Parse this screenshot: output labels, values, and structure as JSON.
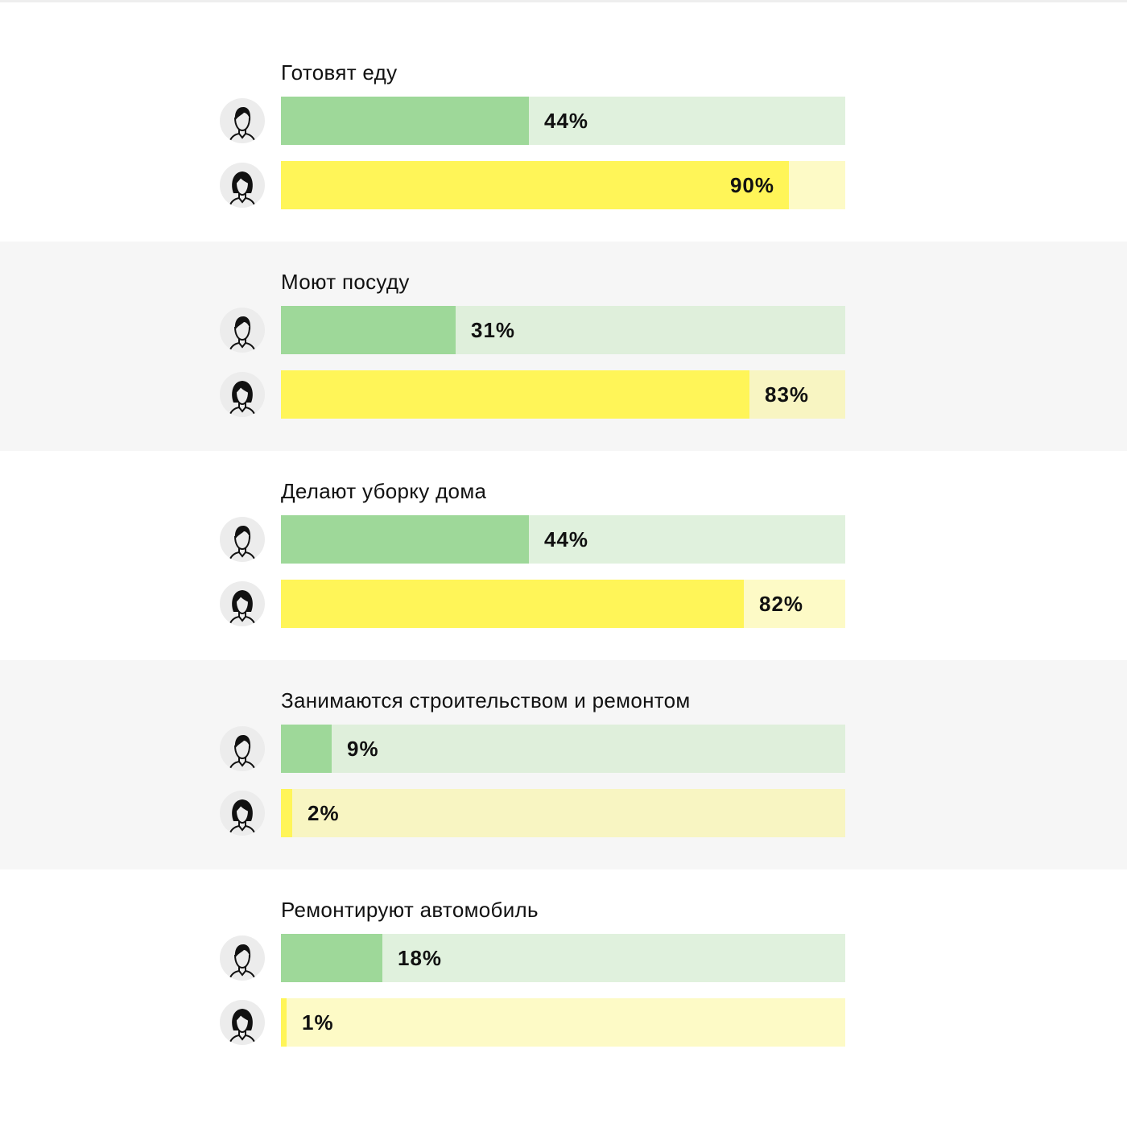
{
  "colors": {
    "men_bar": "#9ed899",
    "men_track": "#e0f1dd",
    "women_bar": "#fff558",
    "women_track": "#fdfac6",
    "shaded_section": "#f6f6f6"
  },
  "icons": {
    "men": "man-avatar-icon",
    "women": "woman-avatar-icon"
  },
  "chart_data": {
    "type": "bar",
    "orientation": "horizontal",
    "categories": [
      "Готовят еду",
      "Моют посуду",
      "Делают уборку дома",
      "Занимаются строительством и ремонтом",
      "Ремонтируют автомобиль"
    ],
    "series": [
      {
        "values": [
          44,
          31,
          44,
          9,
          18
        ]
      },
      {
        "values": [
          90,
          83,
          82,
          2,
          1
        ]
      }
    ],
    "value_labels": [
      [
        "44%",
        "31%",
        "44%",
        "9%",
        "18%"
      ],
      [
        "90%",
        "83%",
        "82%",
        "2%",
        "1%"
      ]
    ],
    "unit": "%",
    "xlim": [
      0,
      100
    ],
    "grid": false,
    "legend": "none"
  }
}
